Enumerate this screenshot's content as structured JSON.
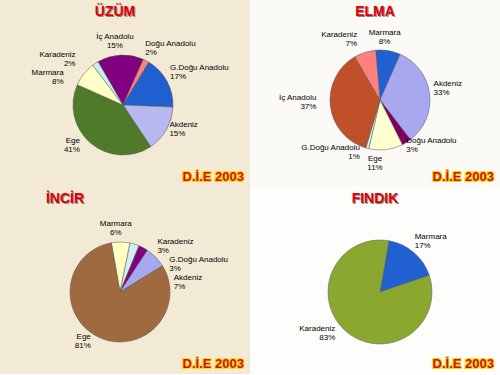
{
  "chart_data": [
    {
      "type": "pie",
      "title": "ÜZÜM",
      "categories": [
        "İç Anadolu",
        "Doğu Anadolu",
        "G.Doğu Anadolu",
        "Akdeniz",
        "Ege",
        "Marmara",
        "Karadeniz"
      ],
      "values": [
        15,
        2,
        17,
        15,
        41,
        8,
        2
      ],
      "value_labels": [
        "15%",
        "2%",
        "17%",
        "15%",
        "41%",
        "8%",
        "2%"
      ],
      "colors": [
        "#800080",
        "#ff8080",
        "#1f5fd0",
        "#b8b8f0",
        "#4f7a2a",
        "#ffffc8",
        "#c8f0f0"
      ],
      "data_labels": true,
      "annotations": [
        "D.İ.E 2003"
      ]
    },
    {
      "type": "pie",
      "title": "ELMA",
      "categories": [
        "Marmara",
        "Akdeniz",
        "Doğu Anadolu",
        "Ege",
        "G.Doğu Anadolu",
        "İç Anadolu",
        "Karadeniz"
      ],
      "values": [
        8,
        33,
        3,
        11,
        1,
        37,
        7
      ],
      "value_labels": [
        "8%",
        "33%",
        "3%",
        "11%",
        "1%",
        "37%",
        "7%"
      ],
      "colors": [
        "#2060d0",
        "#a8a8f0",
        "#800060",
        "#ffffd0",
        "#d0f0f0",
        "#c0502a",
        "#ff8080"
      ],
      "data_labels": true,
      "annotations": [
        "D.İ.E 2003"
      ]
    },
    {
      "type": "pie",
      "title": "İNCİR",
      "categories": [
        "Marmara",
        "Karadeniz",
        "G.Doğu Anadolu",
        "Akdeniz",
        "Ege"
      ],
      "values": [
        6,
        3,
        3,
        7,
        81
      ],
      "value_labels": [
        "6%",
        "3%",
        "3%",
        "7%",
        "81%"
      ],
      "colors": [
        "#ffffc0",
        "#d0f0f0",
        "#800080",
        "#a8a8f0",
        "#a06a40"
      ],
      "data_labels": true,
      "annotations": [
        "D.İ.E 2003"
      ]
    },
    {
      "type": "pie",
      "title": "FINDIK",
      "categories": [
        "Marmara",
        "Karadeniz"
      ],
      "values": [
        17,
        83
      ],
      "value_labels": [
        "17%",
        "83%"
      ],
      "colors": [
        "#2060d0",
        "#8aa830"
      ],
      "data_labels": true,
      "annotations": [
        "D.İ.E 2003"
      ]
    }
  ]
}
